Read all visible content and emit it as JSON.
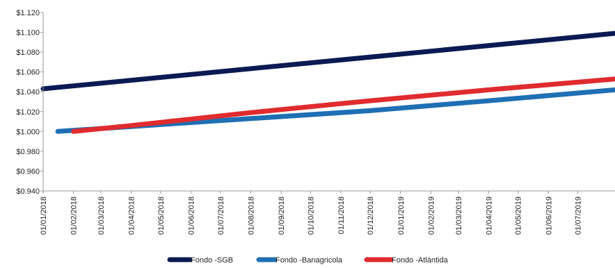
{
  "chart_data": {
    "type": "line",
    "title": "",
    "xlabel": "",
    "ylabel": "",
    "ylim": [
      0.94,
      1.12
    ],
    "y_ticks": [
      0.94,
      0.96,
      0.98,
      1.0,
      1.02,
      1.04,
      1.06,
      1.08,
      1.1,
      1.12
    ],
    "y_tick_labels": [
      "$0.940",
      "$0.960",
      "$0.980",
      "$1.000",
      "$1.020",
      "$1.040",
      "$1.060",
      "$1.080",
      "$1.100",
      "$1.120"
    ],
    "x_range": [
      "2018-01-01",
      "2019-08-08"
    ],
    "x_tick_labels": [
      "01/01/2018",
      "01/02/2018",
      "01/03/2018",
      "01/04/2018",
      "01/05/2018",
      "01/06/2018",
      "01/07/2018",
      "01/08/2018",
      "01/09/2018",
      "01/10/2018",
      "01/11/2018",
      "01/12/2018",
      "01/01/2019",
      "01/02/2019",
      "01/03/2019",
      "01/04/2019",
      "01/05/2019",
      "01/06/2019",
      "01/07/2019"
    ],
    "x_tick_dates": [
      "2018-01-01",
      "2018-02-01",
      "2018-03-01",
      "2018-04-01",
      "2018-05-01",
      "2018-06-01",
      "2018-07-01",
      "2018-08-01",
      "2018-09-01",
      "2018-10-01",
      "2018-11-01",
      "2018-12-01",
      "2019-01-01",
      "2019-02-01",
      "2019-03-01",
      "2019-04-01",
      "2019-05-01",
      "2019-06-01",
      "2019-07-01"
    ],
    "grid": false,
    "legend_position": "bottom",
    "series": [
      {
        "name": "Fondo -SGB",
        "color": "#0b1a52",
        "points": [
          {
            "x": "2018-01-01",
            "y": 1.043
          },
          {
            "x": "2019-08-08",
            "y": 1.099
          }
        ]
      },
      {
        "name": "Fondo -Banagricola",
        "color": "#1f6fb4",
        "points": [
          {
            "x": "2018-01-16",
            "y": 1.0
          },
          {
            "x": "2018-04-01",
            "y": 1.005
          },
          {
            "x": "2018-08-01",
            "y": 1.013
          },
          {
            "x": "2018-12-01",
            "y": 1.021
          },
          {
            "x": "2019-04-01",
            "y": 1.031
          },
          {
            "x": "2019-08-08",
            "y": 1.042
          }
        ]
      },
      {
        "name": "Fondo -Atlántida",
        "color": "#e02b2f",
        "points": [
          {
            "x": "2018-02-01",
            "y": 1.0
          },
          {
            "x": "2018-04-01",
            "y": 1.006
          },
          {
            "x": "2018-08-01",
            "y": 1.019
          },
          {
            "x": "2018-12-01",
            "y": 1.031
          },
          {
            "x": "2019-04-01",
            "y": 1.042
          },
          {
            "x": "2019-08-08",
            "y": 1.053
          }
        ]
      }
    ]
  }
}
